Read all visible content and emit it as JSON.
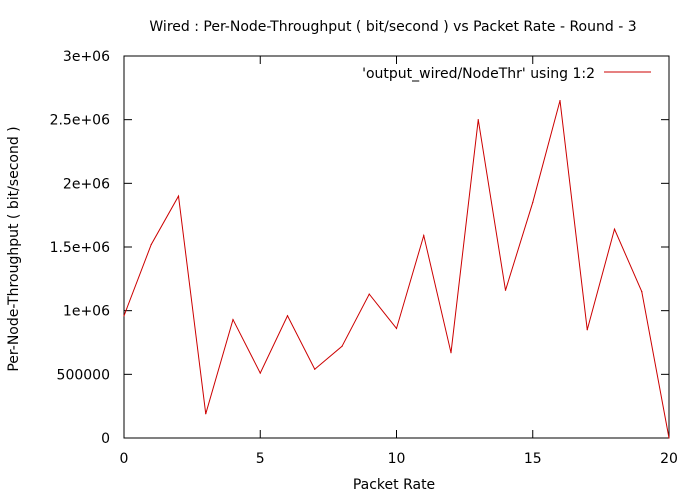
{
  "chart_data": {
    "type": "line",
    "title": "Wired : Per-Node-Throughput ( bit/second ) vs Packet Rate - Round - 3",
    "xlabel": "Packet Rate",
    "ylabel": "Per-Node-Throughput ( bit/second )",
    "xlim": [
      0,
      20
    ],
    "ylim": [
      0,
      3000000
    ],
    "xticks": [
      {
        "value": 0,
        "label": "0"
      },
      {
        "value": 5,
        "label": "5"
      },
      {
        "value": 10,
        "label": "10"
      },
      {
        "value": 15,
        "label": "15"
      },
      {
        "value": 20,
        "label": "20"
      }
    ],
    "yticks": [
      {
        "value": 0,
        "label": "0"
      },
      {
        "value": 500000,
        "label": "500000"
      },
      {
        "value": 1000000,
        "label": "1e+06"
      },
      {
        "value": 1500000,
        "label": "1.5e+06"
      },
      {
        "value": 2000000,
        "label": "2e+06"
      },
      {
        "value": 2500000,
        "label": "2.5e+06"
      },
      {
        "value": 3000000,
        "label": "3e+06"
      }
    ],
    "grid": false,
    "legend_position": "top-right",
    "series": [
      {
        "name": "'output_wired/NodeThr' using 1:2",
        "color": "#cc0000",
        "x": [
          0,
          1,
          2,
          3,
          4,
          5,
          6,
          7,
          8,
          9,
          10,
          11,
          12,
          13,
          14,
          15,
          16,
          17,
          18,
          19,
          20
        ],
        "y": [
          960000,
          1520000,
          1900000,
          190000,
          930000,
          510000,
          960000,
          540000,
          720000,
          1130000,
          860000,
          1590000,
          670000,
          2500000,
          1160000,
          1850000,
          2650000,
          850000,
          1640000,
          1150000,
          0
        ]
      }
    ]
  }
}
